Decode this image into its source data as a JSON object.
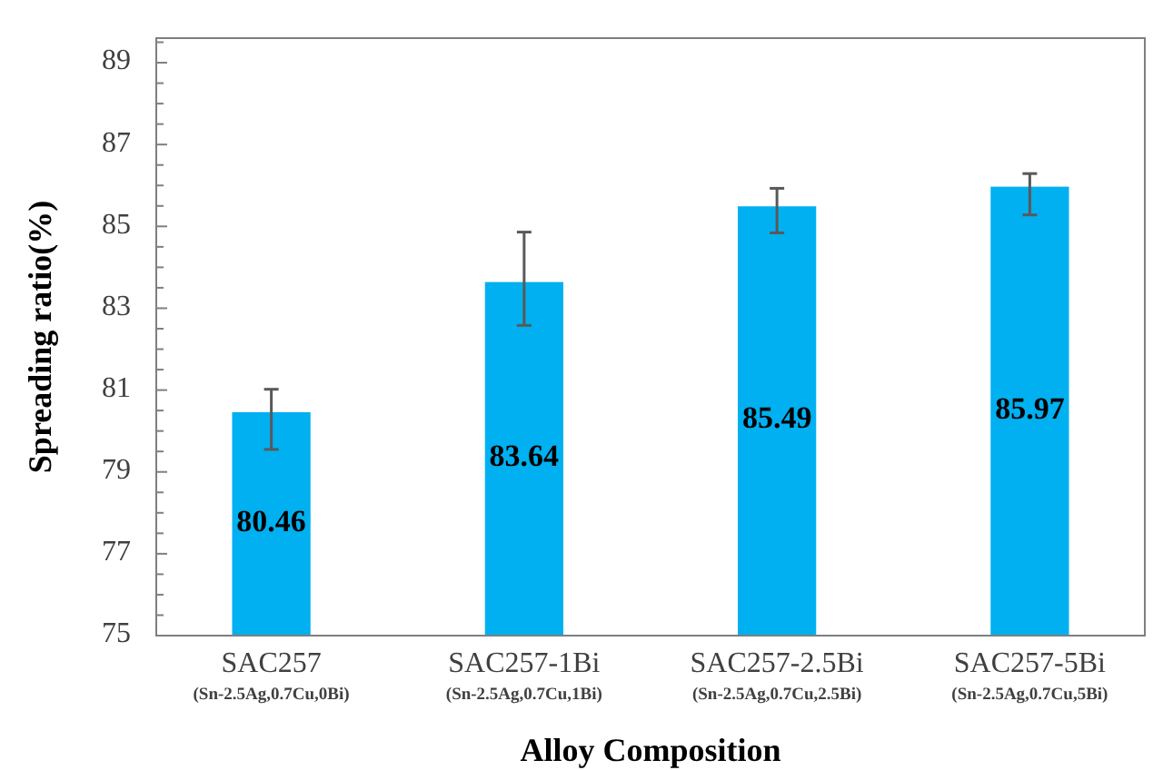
{
  "chart_data": {
    "type": "bar",
    "xlabel": "Alloy Composition",
    "ylabel": "Spreading ratio(%)",
    "categories": [
      "SAC257\n(Sn-2.5Ag,0.7Cu,0Bi)",
      "SAC257-1Bi\n(Sn-2.5Ag,0.7Cu,1Bi)",
      "SAC257-2.5Bi\n(Sn-2.5Ag,0.7Cu,2.5Bi)",
      "SAC257-5Bi\n(Sn-2.5Ag,0.7Cu,5Bi)"
    ],
    "values": [
      80.46,
      83.64,
      85.49,
      85.97
    ],
    "errors": [
      [
        79.55,
        81.02
      ],
      [
        82.58,
        84.86
      ],
      [
        84.84,
        85.93
      ],
      [
        85.28,
        86.29
      ]
    ],
    "color": "#00b0f0",
    "data_labels": true,
    "grid": false,
    "ylim": [
      75,
      89.6
    ],
    "yticks": [
      75,
      {
        "value": 75.5,
        "label": null
      },
      {
        "value": 76,
        "label": null
      },
      {
        "value": 76.5,
        "label": null
      },
      77,
      {
        "value": 77.5,
        "label": null
      },
      {
        "value": 78,
        "label": null
      },
      {
        "value": 78.5,
        "label": null
      },
      79,
      {
        "value": 79.5,
        "label": null
      },
      {
        "value": 80,
        "label": null
      },
      {
        "value": 80.5,
        "label": null
      },
      81,
      {
        "value": 81.5,
        "label": null
      },
      {
        "value": 82,
        "label": null
      },
      {
        "value": 82.5,
        "label": null
      },
      83,
      {
        "value": 83.5,
        "label": null
      },
      {
        "value": 84,
        "label": null
      },
      {
        "value": 84.5,
        "label": null
      },
      85,
      {
        "value": 85.5,
        "label": null
      },
      {
        "value": 86,
        "label": null
      },
      {
        "value": 86.5,
        "label": null
      },
      87,
      {
        "value": 87.5,
        "label": null
      },
      {
        "value": 88,
        "label": null
      },
      {
        "value": 88.5,
        "label": null
      },
      89,
      {
        "value": 89.5,
        "label": null
      }
    ]
  }
}
